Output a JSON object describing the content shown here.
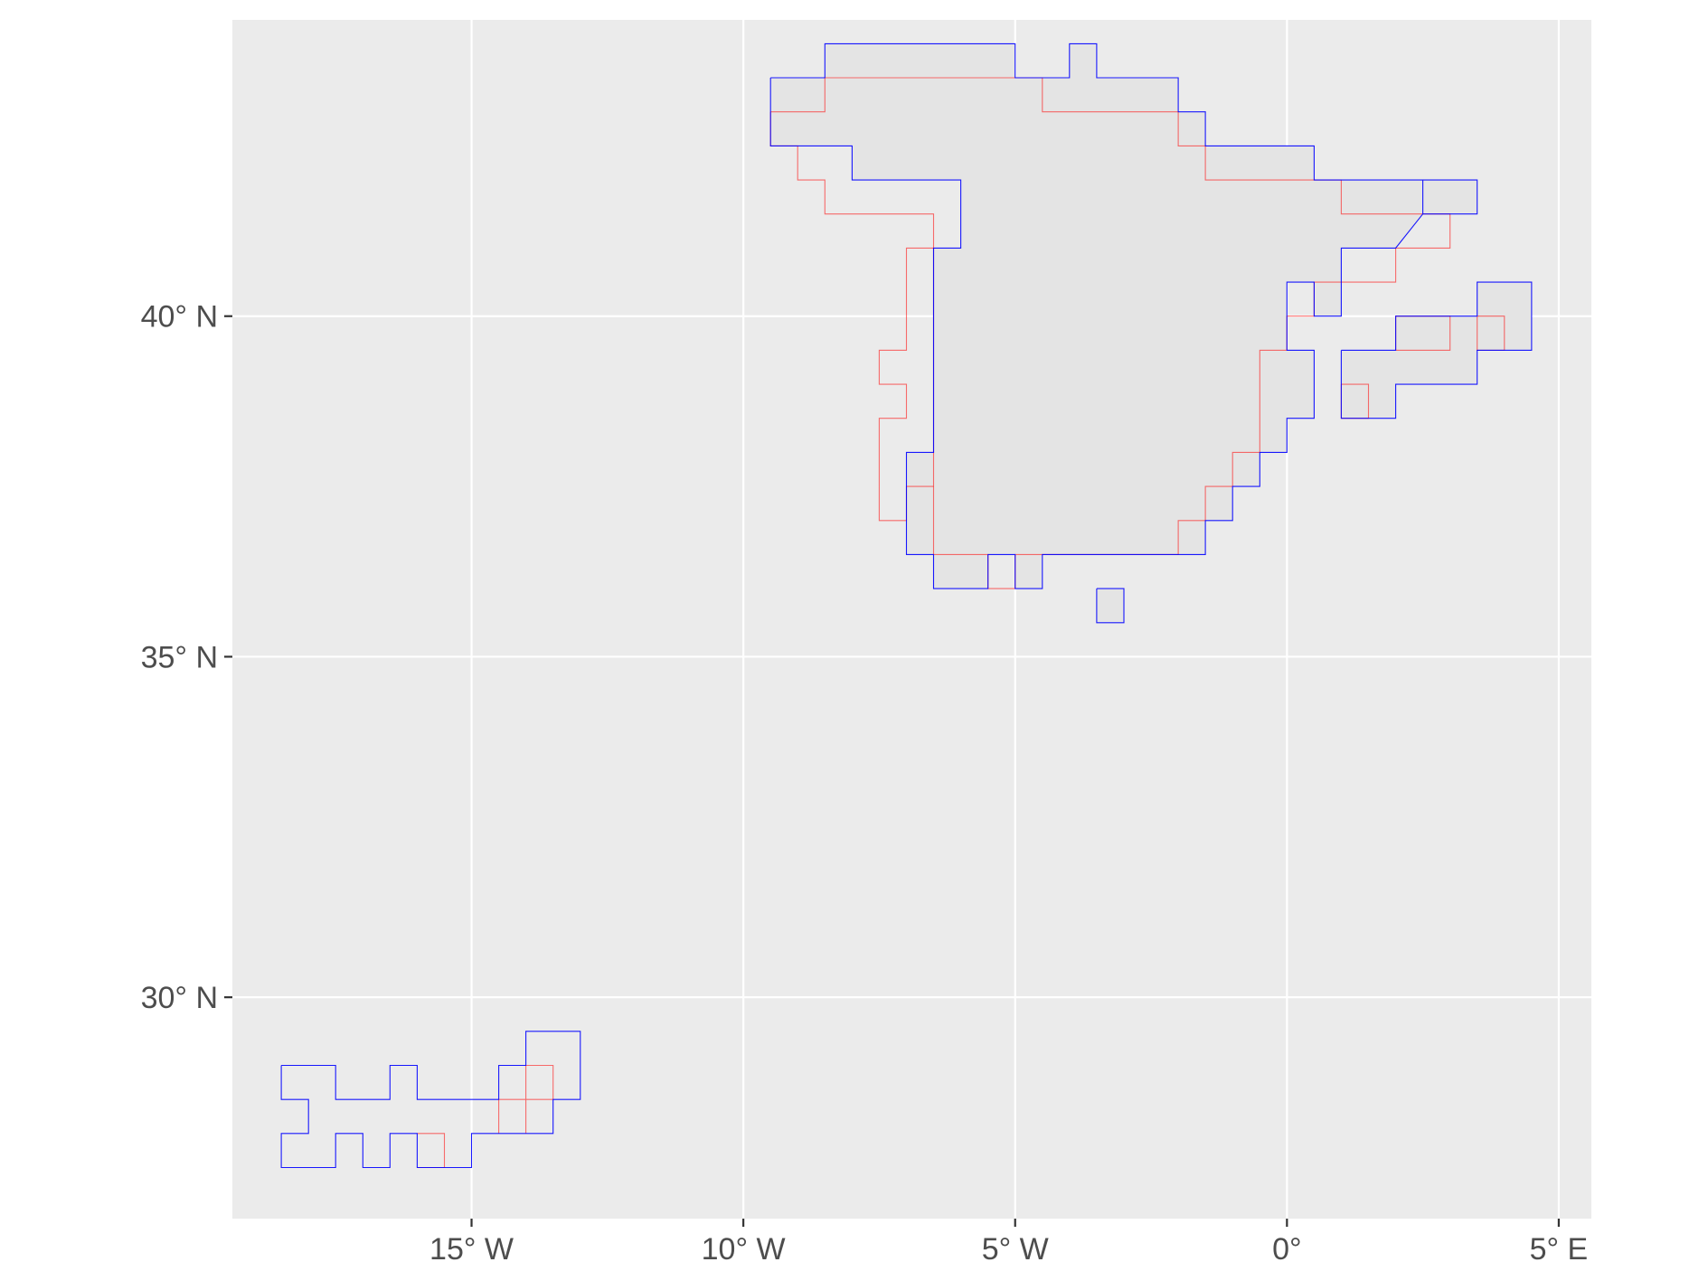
{
  "map": {
    "projection": "longlat",
    "xlim": [
      -19.4,
      5.6
    ],
    "ylim": [
      26.75,
      44.35
    ],
    "cell_size": [
      0.5,
      0.5
    ],
    "background": "#ebebeb",
    "grid_color": "#ffffff",
    "axis_text_color": "#4d4d4d",
    "fill_color": "#e4e4e4",
    "x_ticks": [
      {
        "value": -15,
        "label": "15° W"
      },
      {
        "value": -10,
        "label": "10° W"
      },
      {
        "value": -5,
        "label": "5° W"
      },
      {
        "value": 0,
        "label": "0°"
      },
      {
        "value": 5,
        "label": "5° E"
      }
    ],
    "y_ticks": [
      {
        "value": 30,
        "label": "30° N"
      },
      {
        "value": 35,
        "label": "35° N"
      },
      {
        "value": 40,
        "label": "40° N"
      }
    ],
    "layers": [
      {
        "color": "#ff0000",
        "note": "red grid-cell outline",
        "rings": [
          [
            [
              -9.5,
              43.0
            ],
            [
              -8.5,
              43.0
            ],
            [
              -8.5,
              43.5
            ],
            [
              -4.5,
              43.5
            ],
            [
              -4.5,
              43.0
            ],
            [
              -2.0,
              43.0
            ],
            [
              -2.0,
              42.5
            ],
            [
              -1.5,
              42.5
            ],
            [
              -1.5,
              42.0
            ],
            [
              1.0,
              42.0
            ],
            [
              1.0,
              41.5
            ],
            [
              3.0,
              41.5
            ],
            [
              3.0,
              41.0
            ],
            [
              2.0,
              41.0
            ],
            [
              2.0,
              40.5
            ],
            [
              0.5,
              40.5
            ],
            [
              0.5,
              40.0
            ],
            [
              0.0,
              40.0
            ],
            [
              0.0,
              39.5
            ],
            [
              -0.5,
              39.5
            ],
            [
              -0.5,
              38.0
            ],
            [
              -1.0,
              38.0
            ],
            [
              -1.0,
              37.5
            ],
            [
              -1.5,
              37.5
            ],
            [
              -1.5,
              37.0
            ],
            [
              -2.0,
              37.0
            ],
            [
              -2.0,
              36.5
            ],
            [
              -5.0,
              36.5
            ],
            [
              -5.0,
              36.0
            ],
            [
              -5.5,
              36.0
            ],
            [
              -5.5,
              36.5
            ],
            [
              -6.5,
              36.5
            ],
            [
              -6.5,
              41.5
            ],
            [
              -8.5,
              41.5
            ],
            [
              -8.5,
              42.0
            ],
            [
              -9.0,
              42.0
            ],
            [
              -9.0,
              42.5
            ],
            [
              -9.5,
              42.5
            ],
            [
              -9.5,
              43.0
            ]
          ],
          [
            [
              1.0,
              39.0
            ],
            [
              1.5,
              39.0
            ],
            [
              1.5,
              38.5
            ],
            [
              1.0,
              38.5
            ],
            [
              1.0,
              39.0
            ]
          ],
          [
            [
              2.0,
              39.5
            ],
            [
              3.0,
              39.5
            ],
            [
              3.0,
              40.0
            ],
            [
              2.0,
              40.0
            ],
            [
              2.0,
              39.5
            ]
          ],
          [
            [
              3.5,
              40.0
            ],
            [
              4.0,
              40.0
            ],
            [
              4.0,
              39.5
            ],
            [
              3.5,
              39.5
            ],
            [
              3.5,
              40.0
            ]
          ],
          [
            [
              -6.5,
              41.0
            ],
            [
              -7.0,
              41.0
            ],
            [
              -7.0,
              39.5
            ],
            [
              -7.5,
              39.5
            ],
            [
              -7.5,
              39.0
            ],
            [
              -7.0,
              39.0
            ],
            [
              -7.0,
              38.5
            ],
            [
              -7.5,
              38.5
            ],
            [
              -7.5,
              37.0
            ],
            [
              -7.0,
              37.0
            ],
            [
              -7.0,
              37.5
            ],
            [
              -6.5,
              37.5
            ]
          ],
          [
            [
              -14.5,
              28.0
            ],
            [
              -14.5,
              28.5
            ],
            [
              -13.5,
              28.5
            ],
            [
              -13.5,
              29.0
            ],
            [
              -14.0,
              29.0
            ],
            [
              -14.0,
              28.0
            ]
          ],
          [
            [
              -16.0,
              27.5
            ],
            [
              -15.5,
              27.5
            ],
            [
              -15.5,
              28.0
            ],
            [
              -16.0,
              28.0
            ]
          ]
        ]
      },
      {
        "color": "#0000ff",
        "note": "blue grid-cell outline",
        "rings": [
          [
            [
              -9.5,
              43.5
            ],
            [
              -8.5,
              43.5
            ],
            [
              -8.5,
              44.0
            ],
            [
              -5.0,
              44.0
            ],
            [
              -5.0,
              43.5
            ],
            [
              -4.0,
              43.5
            ],
            [
              -4.0,
              44.0
            ],
            [
              -3.5,
              44.0
            ],
            [
              -3.5,
              43.5
            ],
            [
              -2.0,
              43.5
            ],
            [
              -2.0,
              43.0
            ],
            [
              -1.5,
              43.0
            ],
            [
              -1.5,
              42.5
            ],
            [
              0.5,
              42.5
            ],
            [
              0.5,
              42.0
            ],
            [
              2.5,
              42.0
            ],
            [
              2.5,
              41.5
            ],
            [
              3.5,
              41.5
            ],
            [
              3.5,
              42.0
            ],
            [
              2.5,
              42.0
            ],
            [
              2.5,
              41.5
            ],
            [
              2.0,
              41.0
            ],
            [
              1.0,
              41.0
            ],
            [
              1.0,
              40.0
            ],
            [
              0.5,
              40.0
            ],
            [
              0.5,
              40.5
            ],
            [
              0.0,
              40.5
            ],
            [
              0.0,
              39.5
            ],
            [
              0.5,
              39.5
            ],
            [
              0.5,
              39.0
            ],
            [
              0.5,
              38.5
            ],
            [
              0.0,
              38.5
            ],
            [
              0.0,
              38.0
            ],
            [
              -0.5,
              38.0
            ],
            [
              -0.5,
              37.5
            ],
            [
              -1.0,
              37.5
            ],
            [
              -1.0,
              37.0
            ],
            [
              -1.5,
              37.0
            ],
            [
              -1.5,
              36.5
            ],
            [
              -4.5,
              36.5
            ],
            [
              -4.5,
              36.0
            ],
            [
              -5.0,
              36.0
            ],
            [
              -5.0,
              36.5
            ],
            [
              -5.5,
              36.5
            ],
            [
              -5.5,
              36.0
            ],
            [
              -6.5,
              36.0
            ],
            [
              -6.5,
              36.5
            ],
            [
              -7.0,
              36.5
            ],
            [
              -7.0,
              38.0
            ],
            [
              -6.5,
              38.0
            ],
            [
              -6.5,
              41.0
            ],
            [
              -6.0,
              41.0
            ],
            [
              -6.0,
              42.0
            ],
            [
              -8.0,
              42.0
            ],
            [
              -8.0,
              42.5
            ],
            [
              -9.5,
              42.5
            ],
            [
              -9.5,
              43.5
            ]
          ],
          [
            [
              -3.5,
              36.0
            ],
            [
              -3.0,
              36.0
            ],
            [
              -3.0,
              35.5
            ],
            [
              -3.5,
              35.5
            ],
            [
              -3.5,
              36.0
            ]
          ],
          [
            [
              1.0,
              39.5
            ],
            [
              2.0,
              39.5
            ],
            [
              2.0,
              40.0
            ],
            [
              3.5,
              40.0
            ],
            [
              3.5,
              40.5
            ],
            [
              4.5,
              40.5
            ],
            [
              4.5,
              39.5
            ],
            [
              3.5,
              39.5
            ],
            [
              3.5,
              39.0
            ],
            [
              2.0,
              39.0
            ],
            [
              2.0,
              38.5
            ],
            [
              1.0,
              38.5
            ],
            [
              1.0,
              39.5
            ]
          ],
          [
            [
              -18.5,
              29.0
            ],
            [
              -17.5,
              29.0
            ],
            [
              -17.5,
              28.5
            ],
            [
              -16.5,
              28.5
            ],
            [
              -16.5,
              29.0
            ],
            [
              -16.0,
              29.0
            ],
            [
              -16.0,
              28.5
            ],
            [
              -14.5,
              28.5
            ],
            [
              -14.5,
              29.0
            ],
            [
              -14.0,
              29.0
            ],
            [
              -14.0,
              29.5
            ],
            [
              -13.0,
              29.5
            ],
            [
              -13.0,
              28.5
            ],
            [
              -13.5,
              28.5
            ],
            [
              -13.5,
              28.0
            ],
            [
              -15.0,
              28.0
            ],
            [
              -15.0,
              27.5
            ],
            [
              -16.0,
              27.5
            ],
            [
              -16.0,
              28.0
            ],
            [
              -16.5,
              28.0
            ],
            [
              -16.5,
              27.5
            ],
            [
              -17.0,
              27.5
            ],
            [
              -17.0,
              28.0
            ],
            [
              -17.5,
              28.0
            ],
            [
              -17.5,
              27.5
            ],
            [
              -18.5,
              27.5
            ],
            [
              -18.5,
              28.0
            ],
            [
              -18.0,
              28.0
            ],
            [
              -18.0,
              28.5
            ],
            [
              -18.5,
              28.5
            ],
            [
              -18.5,
              29.0
            ]
          ]
        ]
      }
    ]
  }
}
